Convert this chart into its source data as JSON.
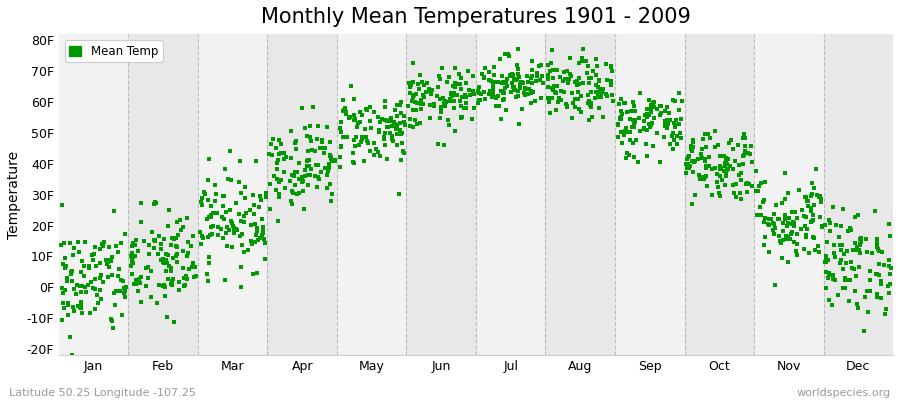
{
  "title": "Monthly Mean Temperatures 1901 - 2009",
  "ylabel": "Temperature",
  "ylim": [
    -22,
    82
  ],
  "yticks": [
    -20,
    -10,
    0,
    10,
    20,
    30,
    40,
    50,
    60,
    70,
    80
  ],
  "ytick_labels": [
    "-20F",
    "-10F",
    "0F",
    "10F",
    "20F",
    "30F",
    "40F",
    "50F",
    "60F",
    "70F",
    "80F"
  ],
  "months": [
    "Jan",
    "Feb",
    "Mar",
    "Apr",
    "May",
    "Jun",
    "Jul",
    "Aug",
    "Sep",
    "Oct",
    "Nov",
    "Dec"
  ],
  "mean_temps_f": [
    2.0,
    8.0,
    22.0,
    40.0,
    51.0,
    60.5,
    66.0,
    64.0,
    53.0,
    40.0,
    22.0,
    8.0
  ],
  "std_temps_f": [
    9.0,
    9.0,
    8.0,
    7.0,
    6.0,
    5.0,
    4.5,
    5.0,
    5.5,
    6.0,
    7.5,
    8.5
  ],
  "n_years": 109,
  "dot_color": "#009900",
  "dot_size": 7,
  "bg_color_light": "#f2f2f2",
  "bg_color_dark": "#e8e8e8",
  "legend_label": "Mean Temp",
  "bottom_left_text": "Latitude 50.25 Longitude -107.25",
  "bottom_right_text": "worldspecies.org",
  "text_color_light": "#999999",
  "vline_color": "#999999",
  "title_fontsize": 15,
  "axis_label_fontsize": 10,
  "tick_fontsize": 9
}
